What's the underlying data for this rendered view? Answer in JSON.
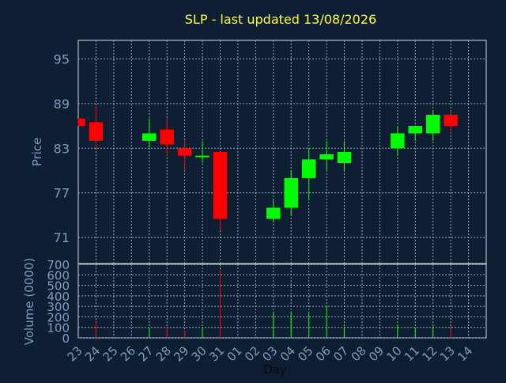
{
  "chart_data": {
    "type": "candlestick",
    "title": "SLP - last updated 13/08/2026",
    "xlabel": "Day",
    "price_panel": {
      "ylabel": "Price",
      "yticks": [
        71,
        77,
        83,
        89,
        95
      ],
      "ylim": [
        67.5,
        97.5
      ]
    },
    "volume_panel": {
      "ylabel": "Volume (0000)",
      "yticks": [
        0,
        100,
        200,
        300,
        400,
        500,
        600,
        700
      ],
      "ylim": [
        0,
        700
      ]
    },
    "x_tick_labels": [
      "23",
      "24",
      "25",
      "26",
      "27",
      "28",
      "29",
      "30",
      "31",
      "01",
      "02",
      "03",
      "04",
      "05",
      "06",
      "07",
      "08",
      "09",
      "10",
      "11",
      "12",
      "13",
      "14"
    ],
    "grid": true,
    "colors": {
      "background": "#0f1f33",
      "text": "#7d9ec0",
      "title": "#ffff33",
      "grid": "#9aa7b4",
      "up": "#00ff00",
      "down": "#ff0000"
    },
    "candles": [
      {
        "day": "23",
        "open": 87.0,
        "high": 87.0,
        "low": 86.0,
        "close": 86.0,
        "volume": 0
      },
      {
        "day": "24",
        "open": 86.5,
        "high": 88.5,
        "low": 83.0,
        "close": 84.0,
        "volume": 150
      },
      {
        "day": "27",
        "open": 84.0,
        "high": 87.0,
        "low": 83.0,
        "close": 85.0,
        "volume": 100
      },
      {
        "day": "28",
        "open": 85.5,
        "high": 87.0,
        "low": 82.0,
        "close": 83.5,
        "volume": 110
      },
      {
        "day": "29",
        "open": 83.0,
        "high": 84.0,
        "low": 80.0,
        "close": 82.0,
        "volume": 70
      },
      {
        "day": "30",
        "open": 81.8,
        "high": 84.0,
        "low": 81.0,
        "close": 82.0,
        "volume": 100
      },
      {
        "day": "31",
        "open": 82.5,
        "high": 82.5,
        "low": 72.0,
        "close": 73.5,
        "volume": 650
      },
      {
        "day": "03",
        "open": 73.5,
        "high": 76.0,
        "low": 73.0,
        "close": 75.0,
        "volume": 250
      },
      {
        "day": "04",
        "open": 75.0,
        "high": 80.0,
        "low": 74.0,
        "close": 79.0,
        "volume": 250
      },
      {
        "day": "05",
        "open": 79.0,
        "high": 83.0,
        "low": 76.0,
        "close": 81.5,
        "volume": 240
      },
      {
        "day": "06",
        "open": 81.5,
        "high": 84.0,
        "low": 80.0,
        "close": 82.2,
        "volume": 310
      },
      {
        "day": "07",
        "open": 81.0,
        "high": 84.0,
        "low": 80.0,
        "close": 82.5,
        "volume": 110
      },
      {
        "day": "10",
        "open": 83.0,
        "high": 86.0,
        "low": 82.0,
        "close": 85.0,
        "volume": 120
      },
      {
        "day": "11",
        "open": 85.0,
        "high": 86.0,
        "low": 84.0,
        "close": 86.0,
        "volume": 100
      },
      {
        "day": "12",
        "open": 85.0,
        "high": 88.0,
        "low": 84.0,
        "close": 87.5,
        "volume": 110
      },
      {
        "day": "13",
        "open": 87.5,
        "high": 88.0,
        "low": 85.0,
        "close": 86.0,
        "volume": 110
      }
    ]
  }
}
